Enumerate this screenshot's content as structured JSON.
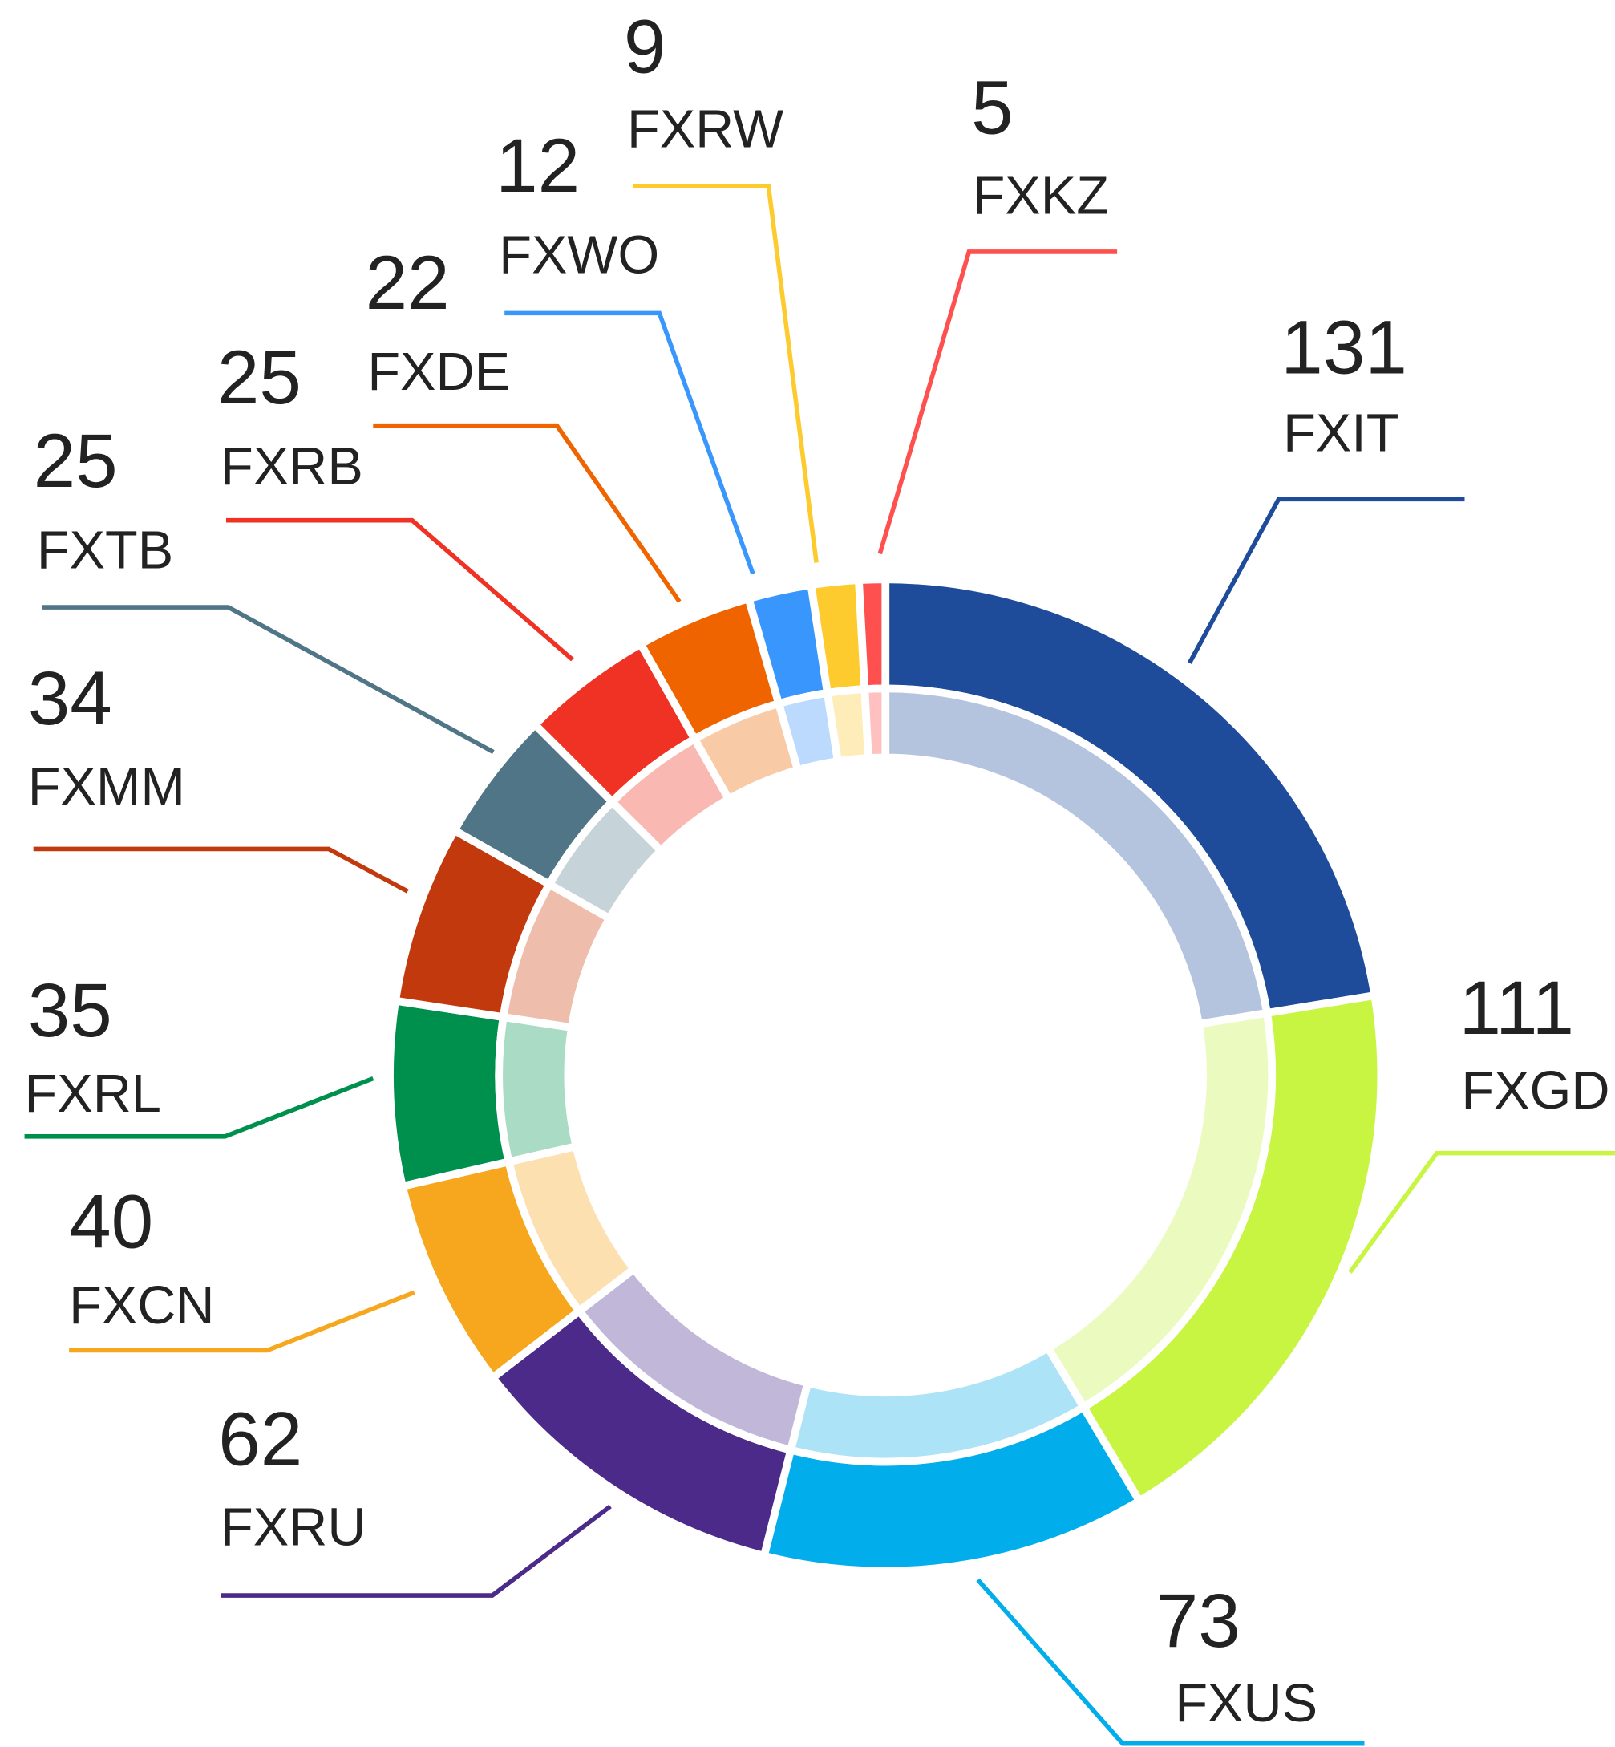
{
  "chart_data": {
    "type": "donut",
    "categories": [
      "FXIT",
      "FXGD",
      "FXUS",
      "FXRU",
      "FXCN",
      "FXRL",
      "FXMM",
      "FXTB",
      "FXRB",
      "FXDE",
      "FXWO",
      "FXRW",
      "FXKZ"
    ],
    "values": [
      131,
      111,
      73,
      62,
      40,
      35,
      34,
      25,
      25,
      22,
      12,
      9,
      5
    ],
    "colors": [
      "#1f4b9b",
      "#c8f542",
      "#02adeb",
      "#4b2a8a",
      "#f6a71e",
      "#00904e",
      "#c2390d",
      "#507586",
      "#ef3223",
      "#f06400",
      "#3896fc",
      "#fdcb2e",
      "#fe504f"
    ],
    "light_colors": [
      "#b4c4df",
      "#ebfbc0",
      "#ace3f7",
      "#c1b7d9",
      "#fde0b0",
      "#aadbc4",
      "#eebdac",
      "#c6d3d9",
      "#f9b8b2",
      "#f9caa6",
      "#bbdafe",
      "#feedb8",
      "#ffc0c0"
    ]
  }
}
